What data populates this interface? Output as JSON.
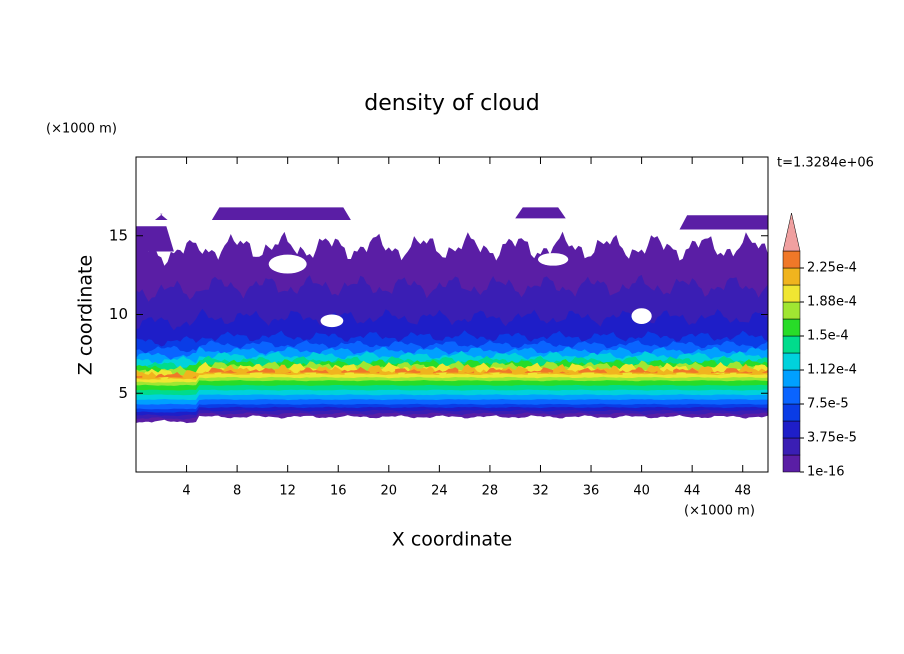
{
  "chart_data": {
    "type": "contour",
    "title": "density of cloud",
    "time_label": "t=1.3284e+06",
    "x_label": "X coordinate",
    "y_label": "Z coordinate",
    "x_unit": "(×1000 m)",
    "y_unit": "(×1000 m)",
    "xlim": [
      0,
      50
    ],
    "ylim": [
      0,
      20
    ],
    "xticks": [
      4,
      8,
      12,
      16,
      20,
      24,
      28,
      32,
      36,
      40,
      44,
      48
    ],
    "yticks": [
      5,
      10,
      15
    ],
    "colorbar": {
      "levels": [
        1e-16,
        1.875e-05,
        3.75e-05,
        5.625e-05,
        7.5e-05,
        9.375e-05,
        0.0001125,
        0.00013125,
        0.00015,
        0.00016875,
        0.0001875,
        0.00020625,
        0.000225,
        0.00024375
      ],
      "ticks": [
        {
          "value": 1e-16,
          "label": "1e-16"
        },
        {
          "value": 3.75e-05,
          "label": "3.75e-5"
        },
        {
          "value": 7.5e-05,
          "label": "7.5e-5"
        },
        {
          "value": 0.0001125,
          "label": "1.12e-4"
        },
        {
          "value": 0.00015,
          "label": "1.5e-4"
        },
        {
          "value": 0.0001875,
          "label": "1.88e-4"
        },
        {
          "value": 0.000225,
          "label": "2.25e-4"
        }
      ],
      "colors": [
        "#5a1ea5",
        "#3a1eb4",
        "#1e1ec8",
        "#0a3ce6",
        "#0a64ff",
        "#00a0ff",
        "#00d2dc",
        "#00dc8c",
        "#28dc28",
        "#a0e632",
        "#f0e632",
        "#f0b41e",
        "#f07828"
      ],
      "extend_color": "#f0a0a0"
    }
  }
}
